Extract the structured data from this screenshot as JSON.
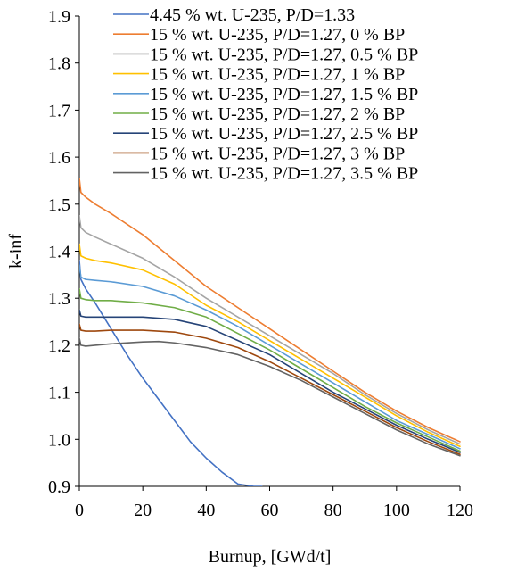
{
  "chart_data": {
    "type": "line",
    "title": "",
    "xlabel": "Burnup, [GWd/t]",
    "ylabel": "k-inf",
    "xlim": [
      0,
      120
    ],
    "ylim": [
      0.9,
      1.9
    ],
    "x_ticks": [
      "0",
      "20",
      "40",
      "60",
      "80",
      "100",
      "120"
    ],
    "y_ticks": [
      "0.9",
      "1.0",
      "1.1",
      "1.2",
      "1.3",
      "1.4",
      "1.5",
      "1.6",
      "1.7",
      "1.8",
      "1.9"
    ],
    "grid": false,
    "legend_position": "top",
    "series": [
      {
        "name": "4.45 % wt. U-235, P/D=1.33",
        "color": "#4472C4",
        "x": [
          0,
          0.5,
          2,
          5,
          10,
          15,
          20,
          25,
          30,
          35,
          40,
          45,
          50,
          55,
          57.5
        ],
        "y": [
          1.38,
          1.34,
          1.32,
          1.29,
          1.235,
          1.18,
          1.13,
          1.085,
          1.04,
          0.995,
          0.96,
          0.93,
          0.905,
          0.9,
          0.9
        ]
      },
      {
        "name": "15 % wt. U-235, P/D=1.27, 0 % BP",
        "color": "#ED7D31",
        "x": [
          0,
          0.5,
          2,
          5,
          10,
          20,
          30,
          40,
          50,
          60,
          70,
          80,
          90,
          100,
          110,
          120
        ],
        "y": [
          1.555,
          1.525,
          1.515,
          1.5,
          1.48,
          1.435,
          1.38,
          1.325,
          1.28,
          1.235,
          1.19,
          1.145,
          1.1,
          1.06,
          1.025,
          0.995
        ]
      },
      {
        "name": "15 % wt. U-235, P/D=1.27, 0.5 % BP",
        "color": "#A5A5A5",
        "x": [
          0,
          0.5,
          2,
          5,
          10,
          20,
          30,
          40,
          50,
          60,
          70,
          80,
          90,
          100,
          110,
          120
        ],
        "y": [
          1.475,
          1.45,
          1.44,
          1.43,
          1.415,
          1.385,
          1.345,
          1.3,
          1.26,
          1.22,
          1.18,
          1.14,
          1.095,
          1.055,
          1.02,
          0.99
        ]
      },
      {
        "name": "15 % wt. U-235, P/D=1.27, 1 % BP",
        "color": "#FFC000",
        "x": [
          0,
          0.5,
          2,
          5,
          10,
          20,
          30,
          40,
          50,
          60,
          70,
          80,
          90,
          100,
          110,
          120
        ],
        "y": [
          1.415,
          1.39,
          1.385,
          1.38,
          1.375,
          1.36,
          1.33,
          1.285,
          1.25,
          1.21,
          1.17,
          1.13,
          1.09,
          1.05,
          1.015,
          0.985
        ]
      },
      {
        "name": "15 % wt. U-235, P/D=1.27, 1.5 % BP",
        "color": "#5B9BD5",
        "x": [
          0,
          0.5,
          2,
          5,
          10,
          20,
          30,
          40,
          50,
          60,
          70,
          80,
          90,
          100,
          110,
          120
        ],
        "y": [
          1.37,
          1.345,
          1.34,
          1.338,
          1.335,
          1.325,
          1.305,
          1.275,
          1.24,
          1.2,
          1.16,
          1.12,
          1.08,
          1.04,
          1.01,
          0.98
        ]
      },
      {
        "name": "15 % wt. U-235, P/D=1.27, 2 % BP",
        "color": "#70AD47",
        "x": [
          0,
          0.5,
          2,
          5,
          10,
          20,
          30,
          40,
          50,
          60,
          70,
          80,
          90,
          100,
          110,
          120
        ],
        "y": [
          1.32,
          1.3,
          1.297,
          1.295,
          1.295,
          1.29,
          1.28,
          1.26,
          1.225,
          1.19,
          1.15,
          1.11,
          1.07,
          1.035,
          1.005,
          0.975
        ]
      },
      {
        "name": "15 % wt. U-235, P/D=1.27, 2.5 % BP",
        "color": "#264478",
        "x": [
          0,
          0.5,
          2,
          5,
          10,
          20,
          30,
          40,
          50,
          60,
          70,
          80,
          90,
          100,
          110,
          120
        ],
        "y": [
          1.275,
          1.262,
          1.26,
          1.26,
          1.26,
          1.26,
          1.255,
          1.24,
          1.21,
          1.18,
          1.14,
          1.1,
          1.065,
          1.03,
          1.0,
          0.972
        ]
      },
      {
        "name": "15 % wt. U-235, P/D=1.27, 3 % BP",
        "color": "#9E480E",
        "x": [
          0,
          0.5,
          2,
          5,
          10,
          20,
          30,
          40,
          50,
          60,
          70,
          80,
          90,
          100,
          110,
          120
        ],
        "y": [
          1.245,
          1.232,
          1.23,
          1.23,
          1.232,
          1.232,
          1.228,
          1.215,
          1.195,
          1.165,
          1.13,
          1.095,
          1.06,
          1.025,
          0.995,
          0.968
        ]
      },
      {
        "name": "15 % wt. U-235, P/D=1.27, 3.5 % BP",
        "color": "#636363",
        "x": [
          0,
          0.5,
          2,
          5,
          10,
          20,
          25,
          30,
          40,
          50,
          60,
          70,
          80,
          90,
          100,
          110,
          120
        ],
        "y": [
          1.215,
          1.2,
          1.198,
          1.2,
          1.203,
          1.207,
          1.208,
          1.205,
          1.195,
          1.18,
          1.155,
          1.125,
          1.09,
          1.055,
          1.02,
          0.99,
          0.965
        ]
      }
    ]
  }
}
